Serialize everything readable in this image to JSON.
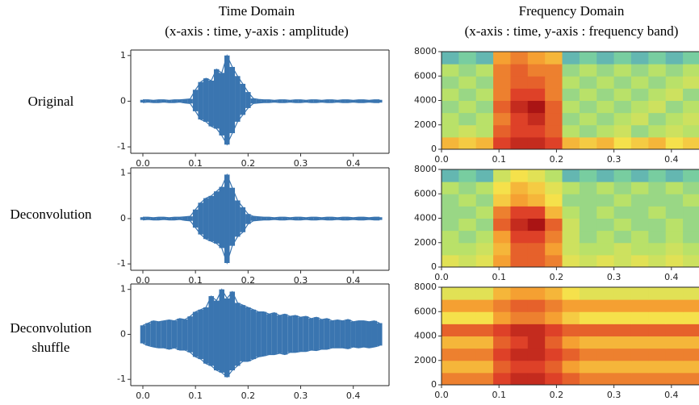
{
  "column_headers": [
    {
      "title": "Time Domain",
      "subtitle": "(x-axis : time, y-axis : amplitude)"
    },
    {
      "title": "Frequency Domain",
      "subtitle": "(x-axis : time, y-axis : frequency band)"
    }
  ],
  "row_labels": [
    [
      "Original"
    ],
    [
      "Deconvolution"
    ],
    [
      "Deconvolution",
      "shuffle"
    ]
  ],
  "chart_data": [
    {
      "type": "area",
      "x": [
        0,
        0.01,
        0.02,
        0.03,
        0.04,
        0.05,
        0.06,
        0.07,
        0.08,
        0.09,
        0.1,
        0.11,
        0.12,
        0.13,
        0.14,
        0.15,
        0.16,
        0.17,
        0.18,
        0.19,
        0.2,
        0.21,
        0.22,
        0.23,
        0.24,
        0.25,
        0.26,
        0.27,
        0.28,
        0.29,
        0.3,
        0.31,
        0.32,
        0.33,
        0.34,
        0.35,
        0.36,
        0.37,
        0.38,
        0.39,
        0.4,
        0.41,
        0.42,
        0.43,
        0.44,
        0.45
      ],
      "series": [
        {
          "color": "#3a75b0",
          "values": [
            0.03,
            0.03,
            0.02,
            0.03,
            0.03,
            0.02,
            0.03,
            0.03,
            0.04,
            0.05,
            0.25,
            0.42,
            0.5,
            0.45,
            0.7,
            0.62,
            1.0,
            0.75,
            0.55,
            0.38,
            0.2,
            0.06,
            0.04,
            0.03,
            0.03,
            0.02,
            0.03,
            0.03,
            0.02,
            0.03,
            0.03,
            0.02,
            0.03,
            0.03,
            0.02,
            0.03,
            0.03,
            0.02,
            0.03,
            0.03,
            0.02,
            0.03,
            0.03,
            0.02,
            0.03,
            0.03
          ]
        },
        {
          "color": "#3a75b0",
          "values": [
            -0.03,
            -0.02,
            -0.03,
            -0.03,
            -0.02,
            -0.03,
            -0.03,
            -0.02,
            -0.04,
            -0.05,
            -0.22,
            -0.4,
            -0.45,
            -0.55,
            -0.6,
            -0.75,
            -0.95,
            -0.7,
            -0.45,
            -0.3,
            -0.15,
            -0.05,
            -0.04,
            -0.03,
            -0.03,
            -0.02,
            -0.03,
            -0.03,
            -0.02,
            -0.03,
            -0.03,
            -0.02,
            -0.03,
            -0.03,
            -0.02,
            -0.03,
            -0.03,
            -0.02,
            -0.03,
            -0.03,
            -0.02,
            -0.03,
            -0.03,
            -0.02,
            -0.03,
            -0.03
          ]
        }
      ],
      "xlim": [
        -0.023,
        0.468
      ],
      "ylim": [
        -1.14,
        1.12
      ],
      "xticks": [
        {
          "value": 0,
          "label": "0.0"
        },
        {
          "value": 0.1,
          "label": "0.1"
        },
        {
          "value": 0.2,
          "label": "0.2"
        },
        {
          "value": 0.3,
          "label": "0.3"
        },
        {
          "value": 0.4,
          "label": "0.4"
        }
      ],
      "yticks": [
        -1,
        0,
        1
      ]
    },
    {
      "type": "heatmap",
      "xbins": [
        0,
        0.03,
        0.06,
        0.09,
        0.12,
        0.15,
        0.18,
        0.21,
        0.24,
        0.27,
        0.3,
        0.33,
        0.36,
        0.39,
        0.42,
        0.45
      ],
      "ybins": [
        0,
        1000,
        2000,
        3000,
        4000,
        5000,
        6000,
        7000,
        8000
      ],
      "z": [
        [
          0.7,
          0.65,
          0.7,
          0.9,
          0.95,
          0.95,
          0.9,
          0.7,
          0.65,
          0.7,
          0.6,
          0.65,
          0.7,
          0.6,
          0.65
        ],
        [
          0.45,
          0.5,
          0.45,
          0.85,
          0.9,
          0.9,
          0.85,
          0.45,
          0.4,
          0.45,
          0.5,
          0.4,
          0.45,
          0.5,
          0.45
        ],
        [
          0.45,
          0.4,
          0.45,
          0.8,
          0.9,
          0.95,
          0.85,
          0.4,
          0.45,
          0.4,
          0.45,
          0.5,
          0.4,
          0.45,
          0.5
        ],
        [
          0.4,
          0.45,
          0.4,
          0.85,
          0.95,
          1.0,
          0.85,
          0.45,
          0.4,
          0.45,
          0.4,
          0.45,
          0.5,
          0.4,
          0.45
        ],
        [
          0.45,
          0.4,
          0.45,
          0.8,
          0.9,
          0.9,
          0.8,
          0.4,
          0.45,
          0.4,
          0.45,
          0.4,
          0.45,
          0.5,
          0.4
        ],
        [
          0.4,
          0.45,
          0.4,
          0.8,
          0.85,
          0.85,
          0.8,
          0.45,
          0.4,
          0.45,
          0.4,
          0.45,
          0.4,
          0.45,
          0.5
        ],
        [
          0.45,
          0.4,
          0.45,
          0.8,
          0.85,
          0.8,
          0.8,
          0.4,
          0.45,
          0.4,
          0.45,
          0.4,
          0.45,
          0.4,
          0.45
        ],
        [
          0.3,
          0.35,
          0.3,
          0.75,
          0.8,
          0.75,
          0.7,
          0.3,
          0.35,
          0.3,
          0.35,
          0.3,
          0.35,
          0.3,
          0.35
        ]
      ],
      "xlim": [
        0,
        0.448
      ],
      "ylim": [
        0,
        8000
      ],
      "xticks": [
        {
          "value": 0,
          "label": "0.0"
        },
        {
          "value": 0.1,
          "label": "0.1"
        },
        {
          "value": 0.2,
          "label": "0.2"
        },
        {
          "value": 0.3,
          "label": "0.3"
        },
        {
          "value": 0.4,
          "label": "0.4"
        }
      ],
      "yticks": [
        0,
        2000,
        4000,
        6000,
        8000
      ]
    },
    {
      "type": "area",
      "x": [
        0,
        0.01,
        0.02,
        0.03,
        0.04,
        0.05,
        0.06,
        0.07,
        0.08,
        0.09,
        0.1,
        0.11,
        0.12,
        0.13,
        0.14,
        0.15,
        0.16,
        0.17,
        0.18,
        0.19,
        0.2,
        0.21,
        0.22,
        0.23,
        0.24,
        0.25,
        0.26,
        0.27,
        0.28,
        0.29,
        0.3,
        0.31,
        0.32,
        0.33,
        0.34,
        0.35,
        0.36,
        0.37,
        0.38,
        0.39,
        0.4,
        0.41,
        0.42,
        0.43,
        0.44,
        0.45
      ],
      "series": [
        {
          "color": "#3a75b0",
          "values": [
            0.03,
            0.03,
            0.02,
            0.03,
            0.03,
            0.02,
            0.03,
            0.03,
            0.04,
            0.05,
            0.2,
            0.35,
            0.45,
            0.5,
            0.6,
            0.7,
            0.97,
            0.68,
            0.4,
            0.25,
            0.1,
            0.05,
            0.04,
            0.03,
            0.03,
            0.02,
            0.03,
            0.03,
            0.02,
            0.03,
            0.03,
            0.02,
            0.03,
            0.03,
            0.02,
            0.03,
            0.03,
            0.02,
            0.03,
            0.03,
            0.02,
            0.03,
            0.03,
            0.02,
            0.03,
            0.03
          ]
        },
        {
          "color": "#3a75b0",
          "values": [
            -0.03,
            -0.02,
            -0.03,
            -0.03,
            -0.02,
            -0.03,
            -0.03,
            -0.02,
            -0.04,
            -0.05,
            -0.2,
            -0.35,
            -0.45,
            -0.5,
            -0.55,
            -0.65,
            -0.98,
            -0.6,
            -0.4,
            -0.3,
            -0.12,
            -0.05,
            -0.04,
            -0.03,
            -0.03,
            -0.02,
            -0.03,
            -0.03,
            -0.02,
            -0.03,
            -0.03,
            -0.02,
            -0.03,
            -0.03,
            -0.02,
            -0.03,
            -0.03,
            -0.02,
            -0.03,
            -0.03,
            -0.02,
            -0.03,
            -0.03,
            -0.02,
            -0.03,
            -0.03
          ]
        }
      ],
      "xlim": [
        -0.023,
        0.468
      ],
      "ylim": [
        -1.14,
        1.12
      ],
      "xticks": [
        {
          "value": 0,
          "label": "0.0"
        },
        {
          "value": 0.1,
          "label": "0.1"
        },
        {
          "value": 0.2,
          "label": "0.2"
        },
        {
          "value": 0.3,
          "label": "0.3"
        },
        {
          "value": 0.4,
          "label": "0.4"
        }
      ],
      "yticks": [
        -1,
        0,
        1
      ]
    },
    {
      "type": "heatmap",
      "xbins": [
        0,
        0.03,
        0.06,
        0.09,
        0.12,
        0.15,
        0.18,
        0.21,
        0.24,
        0.27,
        0.3,
        0.33,
        0.36,
        0.39,
        0.42,
        0.45
      ],
      "ybins": [
        0,
        1000,
        2000,
        3000,
        4000,
        5000,
        6000,
        7000,
        8000
      ],
      "z": [
        [
          0.55,
          0.5,
          0.55,
          0.75,
          0.85,
          0.85,
          0.8,
          0.55,
          0.5,
          0.55,
          0.5,
          0.55,
          0.5,
          0.55,
          0.5
        ],
        [
          0.45,
          0.45,
          0.5,
          0.7,
          0.85,
          0.85,
          0.75,
          0.5,
          0.45,
          0.45,
          0.5,
          0.45,
          0.45,
          0.5,
          0.45
        ],
        [
          0.45,
          0.4,
          0.45,
          0.75,
          0.9,
          0.9,
          0.8,
          0.5,
          0.4,
          0.45,
          0.4,
          0.45,
          0.4,
          0.45,
          0.4
        ],
        [
          0.4,
          0.45,
          0.4,
          0.85,
          0.95,
          1.0,
          0.85,
          0.5,
          0.4,
          0.4,
          0.45,
          0.4,
          0.4,
          0.45,
          0.4
        ],
        [
          0.4,
          0.4,
          0.45,
          0.8,
          0.9,
          0.9,
          0.7,
          0.45,
          0.4,
          0.45,
          0.4,
          0.4,
          0.45,
          0.4,
          0.4
        ],
        [
          0.4,
          0.45,
          0.4,
          0.65,
          0.75,
          0.7,
          0.6,
          0.4,
          0.4,
          0.4,
          0.45,
          0.4,
          0.4,
          0.4,
          0.45
        ],
        [
          0.45,
          0.4,
          0.45,
          0.6,
          0.7,
          0.65,
          0.55,
          0.45,
          0.4,
          0.45,
          0.4,
          0.45,
          0.4,
          0.45,
          0.4
        ],
        [
          0.3,
          0.35,
          0.3,
          0.5,
          0.6,
          0.55,
          0.45,
          0.3,
          0.35,
          0.3,
          0.35,
          0.3,
          0.35,
          0.3,
          0.35
        ]
      ],
      "xlim": [
        0,
        0.448
      ],
      "ylim": [
        0,
        8000
      ],
      "xticks": [
        {
          "value": 0,
          "label": "0.0"
        },
        {
          "value": 0.1,
          "label": "0.1"
        },
        {
          "value": 0.2,
          "label": "0.2"
        },
        {
          "value": 0.3,
          "label": "0.3"
        },
        {
          "value": 0.4,
          "label": "0.4"
        }
      ],
      "yticks": [
        0,
        2000,
        4000,
        6000,
        8000
      ]
    },
    {
      "type": "area",
      "x": [
        0,
        0.01,
        0.02,
        0.03,
        0.04,
        0.05,
        0.06,
        0.07,
        0.08,
        0.09,
        0.1,
        0.11,
        0.12,
        0.13,
        0.14,
        0.15,
        0.16,
        0.17,
        0.18,
        0.19,
        0.2,
        0.21,
        0.22,
        0.23,
        0.24,
        0.25,
        0.26,
        0.27,
        0.28,
        0.29,
        0.3,
        0.31,
        0.32,
        0.33,
        0.34,
        0.35,
        0.36,
        0.37,
        0.38,
        0.39,
        0.4,
        0.41,
        0.42,
        0.43,
        0.44,
        0.45
      ],
      "series": [
        {
          "color": "#3a75b0",
          "values": [
            0.2,
            0.25,
            0.3,
            0.28,
            0.3,
            0.32,
            0.3,
            0.35,
            0.33,
            0.4,
            0.5,
            0.55,
            0.6,
            0.85,
            0.75,
            1.0,
            0.8,
            0.95,
            0.7,
            0.65,
            0.6,
            0.55,
            0.5,
            0.5,
            0.45,
            0.48,
            0.42,
            0.45,
            0.4,
            0.42,
            0.38,
            0.4,
            0.35,
            0.38,
            0.33,
            0.35,
            0.3,
            0.32,
            0.3,
            0.33,
            0.28,
            0.3,
            0.3,
            0.28,
            0.3,
            0.25
          ]
        },
        {
          "color": "#3a75b0",
          "values": [
            -0.2,
            -0.25,
            -0.28,
            -0.3,
            -0.3,
            -0.33,
            -0.3,
            -0.35,
            -0.35,
            -0.4,
            -0.5,
            -0.55,
            -0.65,
            -0.7,
            -0.8,
            -0.85,
            -0.95,
            -0.8,
            -0.7,
            -0.6,
            -0.6,
            -0.55,
            -0.5,
            -0.48,
            -0.45,
            -0.45,
            -0.42,
            -0.45,
            -0.4,
            -0.4,
            -0.38,
            -0.38,
            -0.35,
            -0.36,
            -0.33,
            -0.33,
            -0.3,
            -0.3,
            -0.3,
            -0.32,
            -0.28,
            -0.3,
            -0.28,
            -0.3,
            -0.28,
            -0.25
          ]
        }
      ],
      "xlim": [
        -0.023,
        0.468
      ],
      "ylim": [
        -1.14,
        1.12
      ],
      "xticks": [
        {
          "value": 0,
          "label": "0.0"
        },
        {
          "value": 0.1,
          "label": "0.1"
        },
        {
          "value": 0.2,
          "label": "0.2"
        },
        {
          "value": 0.3,
          "label": "0.3"
        },
        {
          "value": 0.4,
          "label": "0.4"
        }
      ],
      "yticks": [
        -1,
        0,
        1
      ]
    },
    {
      "type": "heatmap",
      "xbins": [
        0,
        0.03,
        0.06,
        0.09,
        0.12,
        0.15,
        0.18,
        0.21,
        0.24,
        0.27,
        0.3,
        0.33,
        0.36,
        0.39,
        0.42,
        0.45
      ],
      "ybins": [
        0,
        1000,
        2000,
        3000,
        4000,
        5000,
        6000,
        7000,
        8000
      ],
      "z": [
        [
          0.8,
          0.8,
          0.8,
          0.9,
          0.95,
          0.95,
          0.9,
          0.85,
          0.8,
          0.8,
          0.8,
          0.8,
          0.8,
          0.8,
          0.8
        ],
        [
          0.7,
          0.7,
          0.7,
          0.85,
          0.9,
          0.9,
          0.85,
          0.75,
          0.7,
          0.7,
          0.7,
          0.7,
          0.7,
          0.7,
          0.7
        ],
        [
          0.8,
          0.8,
          0.8,
          0.9,
          0.95,
          0.95,
          0.9,
          0.85,
          0.8,
          0.8,
          0.8,
          0.8,
          0.8,
          0.8,
          0.8
        ],
        [
          0.7,
          0.7,
          0.7,
          0.85,
          0.9,
          0.95,
          0.85,
          0.75,
          0.7,
          0.7,
          0.7,
          0.7,
          0.7,
          0.7,
          0.7
        ],
        [
          0.85,
          0.85,
          0.85,
          0.9,
          0.95,
          0.95,
          0.9,
          0.85,
          0.85,
          0.85,
          0.85,
          0.85,
          0.85,
          0.85,
          0.85
        ],
        [
          0.6,
          0.6,
          0.6,
          0.75,
          0.8,
          0.8,
          0.75,
          0.65,
          0.6,
          0.6,
          0.6,
          0.6,
          0.6,
          0.6,
          0.6
        ],
        [
          0.75,
          0.75,
          0.75,
          0.8,
          0.85,
          0.85,
          0.8,
          0.75,
          0.75,
          0.75,
          0.75,
          0.75,
          0.75,
          0.75,
          0.75
        ],
        [
          0.55,
          0.55,
          0.55,
          0.7,
          0.75,
          0.75,
          0.7,
          0.6,
          0.55,
          0.55,
          0.55,
          0.55,
          0.55,
          0.55,
          0.55
        ]
      ],
      "xlim": [
        0,
        0.448
      ],
      "ylim": [
        0,
        8000
      ],
      "xticks": [
        {
          "value": 0,
          "label": "0.0"
        },
        {
          "value": 0.1,
          "label": "0.1"
        },
        {
          "value": 0.2,
          "label": "0.2"
        },
        {
          "value": 0.3,
          "label": "0.3"
        },
        {
          "value": 0.4,
          "label": "0.4"
        }
      ],
      "yticks": [
        0,
        2000,
        4000,
        6000,
        8000
      ]
    }
  ]
}
